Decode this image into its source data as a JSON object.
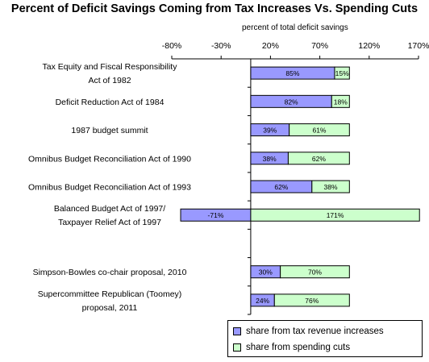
{
  "chart_data": {
    "type": "bar",
    "orientation": "horizontal",
    "stacked": true,
    "title": "Percent of Deficit Savings Coming from Tax Increases Vs. Spending Cuts",
    "xlabel": "percent of total deficit savings",
    "xlim": [
      -80,
      170
    ],
    "xticks": [
      "-80%",
      "-30%",
      "20%",
      "70%",
      "120%",
      "170%"
    ],
    "categories": [
      [
        "Tax Equity and Fiscal Responsibility",
        "Act of 1982"
      ],
      [
        "Deficit Reduction Act of 1984"
      ],
      [
        "1987 budget summit"
      ],
      [
        "Omnibus Budget Reconciliation Act of 1990"
      ],
      [
        "Omnibus Budget Reconciliation Act of 1993"
      ],
      [
        "Balanced Budget Act of 1997/",
        "Taxpayer Relief Act of 1997"
      ],
      [],
      [
        "Simpson-Bowles co-chair proposal, 2010"
      ],
      [
        "Supercommittee Republican (Toomey)",
        "proposal, 2011"
      ]
    ],
    "series": [
      {
        "name": "share from tax revenue increases",
        "color": "#9999ff",
        "values": [
          85,
          82,
          39,
          38,
          62,
          -71,
          null,
          30,
          24
        ],
        "labels": [
          "85%",
          "82%",
          "39%",
          "38%",
          "62%",
          "-71%",
          "",
          "30%",
          "24%"
        ]
      },
      {
        "name": "share from spending cuts",
        "color": "#ccffcc",
        "values": [
          15,
          18,
          61,
          62,
          38,
          171,
          null,
          70,
          76
        ],
        "labels": [
          "15%",
          "18%",
          "61%",
          "62%",
          "38%",
          "171%",
          "",
          "70%",
          "76%"
        ]
      }
    ],
    "grid": false,
    "legend_position": "bottom-right"
  }
}
